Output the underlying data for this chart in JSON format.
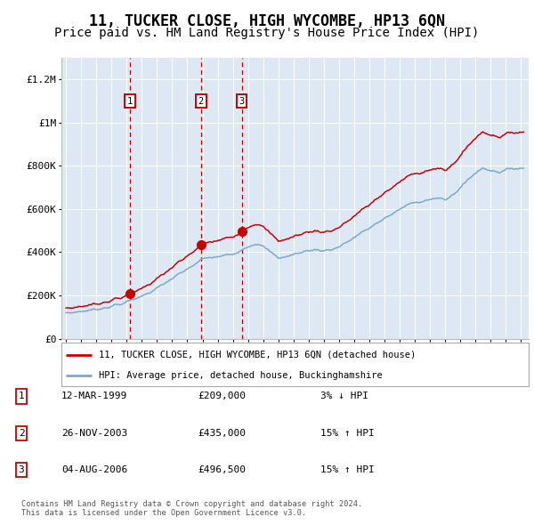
{
  "title": "11, TUCKER CLOSE, HIGH WYCOMBE, HP13 6QN",
  "subtitle": "Price paid vs. HM Land Registry's House Price Index (HPI)",
  "legend_line1": "11, TUCKER CLOSE, HIGH WYCOMBE, HP13 6QN (detached house)",
  "legend_line2": "HPI: Average price, detached house, Buckinghamshire",
  "transactions": [
    {
      "num": 1,
      "date": "12-MAR-1999",
      "price": 209000,
      "hpi": "3% ↓ HPI"
    },
    {
      "num": 2,
      "date": "26-NOV-2003",
      "price": 435000,
      "hpi": "15% ↑ HPI"
    },
    {
      "num": 3,
      "date": "04-AUG-2006",
      "price": 496500,
      "hpi": "15% ↑ HPI"
    }
  ],
  "footnote": "Contains HM Land Registry data © Crown copyright and database right 2024.\nThis data is licensed under the Open Government Licence v3.0.",
  "red_color": "#cc0000",
  "blue_color": "#7aaac8",
  "background_color": "#dde8f4",
  "box_background": "#ffffff",
  "title_fontsize": 12,
  "subtitle_fontsize": 10,
  "xlim_start": 1994.7,
  "xlim_end": 2025.5,
  "ylim_min": 0,
  "ylim_max": 1300000,
  "hpi_anchors_t": [
    1995.0,
    1996.0,
    1997.0,
    1998.0,
    1999.0,
    2000.0,
    2001.0,
    2002.0,
    2003.0,
    2003.5,
    2004.0,
    2004.5,
    2005.0,
    2005.5,
    2006.0,
    2006.5,
    2007.0,
    2007.5,
    2008.0,
    2008.5,
    2009.0,
    2009.5,
    2010.0,
    2010.5,
    2011.0,
    2011.5,
    2012.0,
    2012.5,
    2013.0,
    2013.5,
    2014.0,
    2014.5,
    2015.0,
    2015.5,
    2016.0,
    2016.5,
    2017.0,
    2017.5,
    2018.0,
    2018.5,
    2019.0,
    2019.5,
    2020.0,
    2020.5,
    2021.0,
    2021.5,
    2022.0,
    2022.5,
    2023.0,
    2023.5,
    2024.0,
    2024.5,
    2025.0
  ],
  "hpi_anchors_v": [
    118000,
    126000,
    136000,
    150000,
    168000,
    198000,
    232000,
    278000,
    320000,
    345000,
    368000,
    375000,
    378000,
    385000,
    392000,
    410000,
    428000,
    440000,
    425000,
    400000,
    375000,
    378000,
    390000,
    400000,
    408000,
    412000,
    408000,
    412000,
    425000,
    445000,
    468000,
    490000,
    512000,
    535000,
    558000,
    575000,
    598000,
    618000,
    632000,
    638000,
    645000,
    648000,
    642000,
    665000,
    700000,
    735000,
    768000,
    790000,
    780000,
    772000,
    778000,
    790000,
    788000
  ],
  "trans_t": [
    1999.2055,
    2003.9,
    2006.5944
  ],
  "trans_price": [
    209000,
    435000,
    496500
  ]
}
